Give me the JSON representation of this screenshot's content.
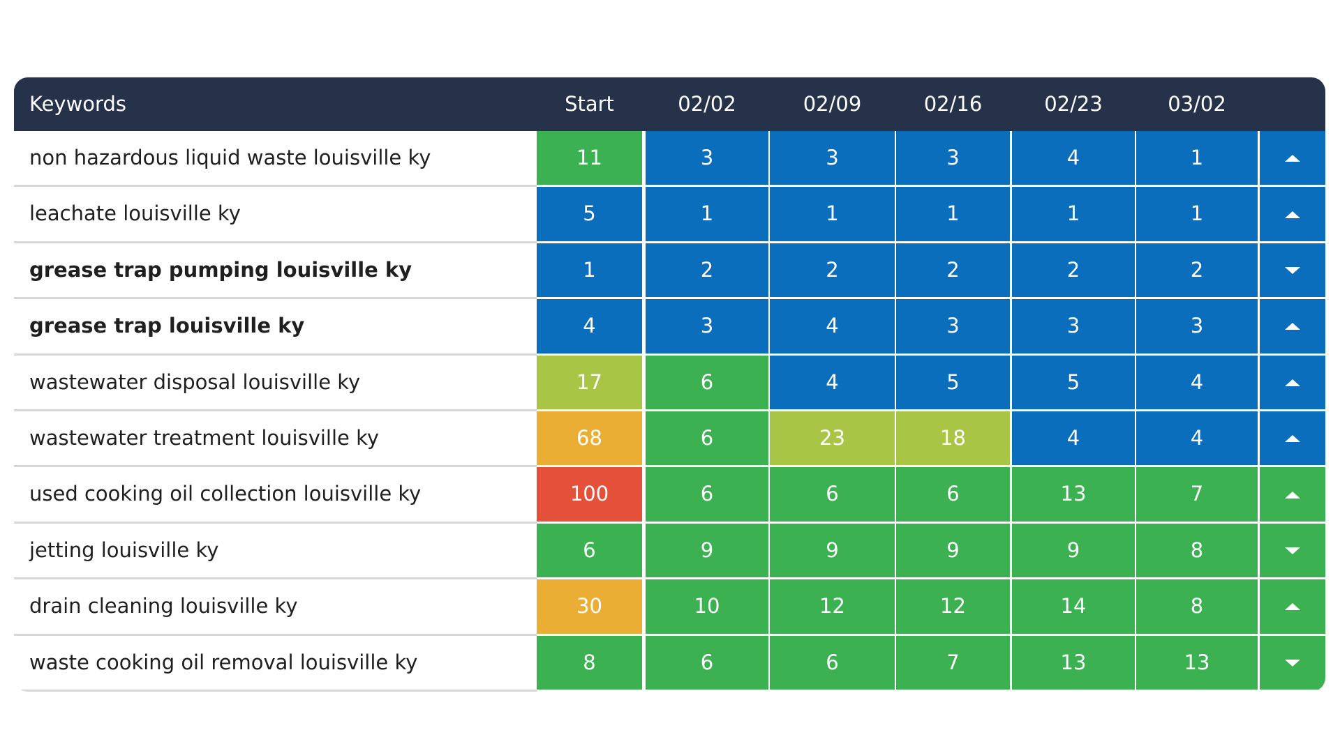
{
  "table": {
    "header": [
      "Keywords",
      "Start",
      "02/02",
      "02/09",
      "02/16",
      "02/23",
      "03/02"
    ],
    "rows": [
      {
        "keyword": "non hazardous liquid waste louisville ky",
        "bold": false,
        "values": [
          11,
          3,
          3,
          3,
          4,
          1
        ],
        "colors": [
          "#3bb151",
          "#0a6ebd",
          "#0a6ebd",
          "#0a6ebd",
          "#0a6ebd",
          "#0a6ebd"
        ],
        "trend": "up"
      },
      {
        "keyword": "leachate louisville ky",
        "bold": false,
        "values": [
          5,
          1,
          1,
          1,
          1,
          1
        ],
        "colors": [
          "#0a6ebd",
          "#0a6ebd",
          "#0a6ebd",
          "#0a6ebd",
          "#0a6ebd",
          "#0a6ebd"
        ],
        "trend": "up"
      },
      {
        "keyword": "grease trap pumping louisville ky",
        "bold": true,
        "values": [
          1,
          2,
          2,
          2,
          2,
          2
        ],
        "colors": [
          "#0a6ebd",
          "#0a6ebd",
          "#0a6ebd",
          "#0a6ebd",
          "#0a6ebd",
          "#0a6ebd"
        ],
        "trend": "down"
      },
      {
        "keyword": "grease trap louisville ky",
        "bold": true,
        "values": [
          4,
          3,
          4,
          3,
          3,
          3
        ],
        "colors": [
          "#0a6ebd",
          "#0a6ebd",
          "#0a6ebd",
          "#0a6ebd",
          "#0a6ebd",
          "#0a6ebd"
        ],
        "trend": "up"
      },
      {
        "keyword": "wastewater disposal louisville ky",
        "bold": false,
        "values": [
          17,
          6,
          4,
          5,
          5,
          4
        ],
        "colors": [
          "#a8c545",
          "#3bb151",
          "#0a6ebd",
          "#0a6ebd",
          "#0a6ebd",
          "#0a6ebd"
        ],
        "trend": "up"
      },
      {
        "keyword": "wastewater treatment louisville ky",
        "bold": false,
        "values": [
          68,
          6,
          23,
          18,
          4,
          4
        ],
        "colors": [
          "#ebae35",
          "#3bb151",
          "#a8c545",
          "#a8c545",
          "#0a6ebd",
          "#0a6ebd"
        ],
        "trend": "up"
      },
      {
        "keyword": "used cooking oil collection louisville ky",
        "bold": false,
        "values": [
          100,
          6,
          6,
          6,
          13,
          7
        ],
        "colors": [
          "#e4503a",
          "#3bb151",
          "#3bb151",
          "#3bb151",
          "#3bb151",
          "#3bb151"
        ],
        "trend": "up"
      },
      {
        "keyword": "jetting louisville ky",
        "bold": false,
        "values": [
          6,
          9,
          9,
          9,
          9,
          8
        ],
        "colors": [
          "#3bb151",
          "#3bb151",
          "#3bb151",
          "#3bb151",
          "#3bb151",
          "#3bb151"
        ],
        "trend": "down"
      },
      {
        "keyword": "drain cleaning louisville ky",
        "bold": false,
        "values": [
          30,
          10,
          12,
          12,
          14,
          8
        ],
        "colors": [
          "#ebae35",
          "#3bb151",
          "#3bb151",
          "#3bb151",
          "#3bb151",
          "#3bb151"
        ],
        "trend": "up"
      },
      {
        "keyword": "waste cooking oil removal louisville ky",
        "bold": false,
        "values": [
          8,
          6,
          6,
          7,
          13,
          13
        ],
        "colors": [
          "#3bb151",
          "#3bb151",
          "#3bb151",
          "#3bb151",
          "#3bb151",
          "#3bb151"
        ],
        "trend": "down"
      }
    ]
  }
}
